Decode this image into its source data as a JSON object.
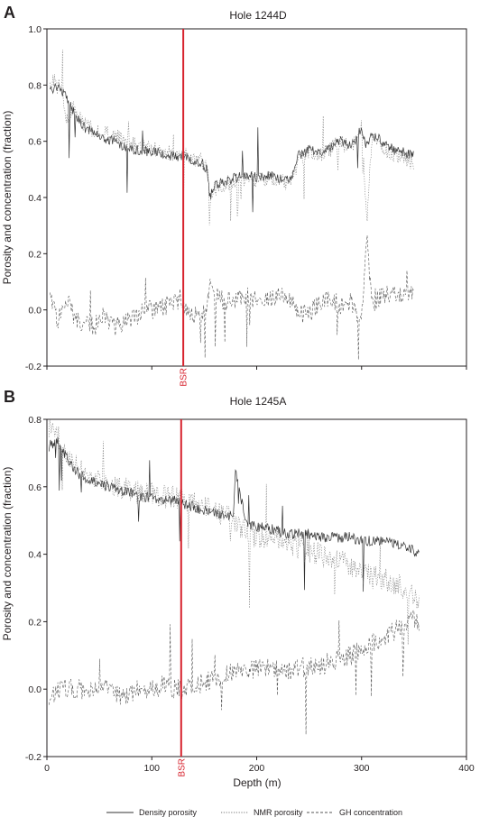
{
  "chart_data": [
    {
      "type": "line",
      "panel_label": "A",
      "title": "Hole 1244D",
      "xlabel": "",
      "ylabel": "Porosity and concentration (fraction)",
      "xlim": [
        0,
        400
      ],
      "ylim": [
        -0.2,
        1.0
      ],
      "x_ticks": [
        0,
        100,
        200,
        300,
        400
      ],
      "y_ticks": [
        "-0.2",
        "0.0",
        "0.2",
        "0.4",
        "0.6",
        "0.8",
        "1.0"
      ],
      "x_tick_labels_shown": false,
      "bsr": {
        "x": 130,
        "label": "BSR",
        "color": "#d7232e"
      },
      "grid": false,
      "series": [
        {
          "name": "Density porosity",
          "style": "solid",
          "color": "#333333",
          "noise": 0.018,
          "x": [
            3,
            10,
            18,
            25,
            35,
            45,
            55,
            65,
            75,
            85,
            95,
            105,
            115,
            125,
            135,
            140,
            148,
            153,
            155,
            160,
            170,
            180,
            190,
            200,
            210,
            220,
            230,
            235,
            240,
            250,
            260,
            270,
            280,
            290,
            300,
            305,
            310,
            320,
            330,
            340,
            350
          ],
          "y": [
            0.78,
            0.8,
            0.76,
            0.71,
            0.65,
            0.63,
            0.61,
            0.6,
            0.58,
            0.57,
            0.565,
            0.56,
            0.55,
            0.545,
            0.54,
            0.53,
            0.52,
            0.5,
            0.4,
            0.44,
            0.46,
            0.47,
            0.48,
            0.47,
            0.48,
            0.47,
            0.46,
            0.48,
            0.55,
            0.57,
            0.56,
            0.58,
            0.6,
            0.58,
            0.65,
            0.58,
            0.62,
            0.6,
            0.57,
            0.56,
            0.55
          ]
        },
        {
          "name": "NMR porosity",
          "style": "dotted",
          "color": "#777777",
          "noise": 0.028,
          "x": [
            3,
            10,
            18,
            25,
            35,
            45,
            55,
            65,
            75,
            85,
            95,
            105,
            115,
            125,
            135,
            140,
            148,
            153,
            155,
            160,
            170,
            180,
            190,
            200,
            210,
            220,
            230,
            235,
            240,
            250,
            260,
            270,
            280,
            290,
            300,
            305,
            310,
            320,
            330,
            340,
            350
          ],
          "y": [
            0.8,
            0.84,
            0.68,
            0.72,
            0.66,
            0.64,
            0.63,
            0.62,
            0.6,
            0.59,
            0.58,
            0.57,
            0.56,
            0.555,
            0.55,
            0.54,
            0.53,
            0.51,
            0.38,
            0.43,
            0.45,
            0.46,
            0.47,
            0.46,
            0.47,
            0.46,
            0.45,
            0.47,
            0.54,
            0.56,
            0.55,
            0.57,
            0.6,
            0.57,
            0.66,
            0.3,
            0.62,
            0.58,
            0.55,
            0.54,
            0.52
          ]
        },
        {
          "name": "GH concentration",
          "style": "dashed",
          "color": "#555555",
          "noise": 0.035,
          "x": [
            3,
            10,
            18,
            25,
            35,
            45,
            55,
            65,
            75,
            85,
            95,
            105,
            115,
            125,
            135,
            140,
            148,
            153,
            155,
            160,
            170,
            180,
            190,
            200,
            210,
            220,
            230,
            235,
            240,
            250,
            260,
            270,
            280,
            290,
            300,
            305,
            310,
            320,
            330,
            340,
            350
          ],
          "y": [
            0.05,
            -0.04,
            0.05,
            -0.02,
            -0.05,
            -0.06,
            -0.02,
            -0.06,
            -0.04,
            -0.02,
            0.0,
            0.0,
            0.02,
            0.03,
            0.0,
            -0.02,
            -0.02,
            0.0,
            0.12,
            0.05,
            0.03,
            0.04,
            0.05,
            0.04,
            0.03,
            0.05,
            0.05,
            0.03,
            -0.02,
            -0.01,
            0.02,
            0.04,
            0.02,
            0.03,
            -0.04,
            0.25,
            0.02,
            0.05,
            0.07,
            0.05,
            0.06
          ]
        }
      ]
    },
    {
      "type": "line",
      "panel_label": "B",
      "title": "Hole 1245A",
      "xlabel": "Depth (m)",
      "ylabel": "Porosity and concentration (fraction)",
      "xlim": [
        0,
        400
      ],
      "ylim": [
        -0.2,
        0.8
      ],
      "x_ticks": [
        "0",
        "100",
        "200",
        "300",
        "400"
      ],
      "y_ticks": [
        "-0.2",
        "0.0",
        "0.2",
        "0.4",
        "0.6",
        "0.8"
      ],
      "x_tick_labels_shown": true,
      "bsr": {
        "x": 128,
        "label": "BSR",
        "color": "#d7232e"
      },
      "grid": false,
      "series": [
        {
          "name": "Density porosity",
          "style": "solid",
          "color": "#333333",
          "noise": 0.016,
          "x": [
            2,
            10,
            20,
            30,
            40,
            50,
            60,
            70,
            80,
            90,
            100,
            110,
            120,
            130,
            140,
            150,
            160,
            170,
            178,
            180,
            190,
            200,
            210,
            220,
            230,
            240,
            250,
            260,
            270,
            280,
            290,
            300,
            310,
            320,
            330,
            340,
            350,
            355
          ],
          "y": [
            0.72,
            0.74,
            0.68,
            0.64,
            0.62,
            0.61,
            0.6,
            0.59,
            0.58,
            0.57,
            0.57,
            0.56,
            0.56,
            0.55,
            0.54,
            0.53,
            0.52,
            0.51,
            0.52,
            0.65,
            0.49,
            0.48,
            0.48,
            0.47,
            0.46,
            0.46,
            0.46,
            0.45,
            0.45,
            0.45,
            0.45,
            0.44,
            0.44,
            0.44,
            0.43,
            0.42,
            0.41,
            0.4
          ]
        },
        {
          "name": "NMR porosity",
          "style": "dotted",
          "color": "#777777",
          "noise": 0.035,
          "x": [
            2,
            10,
            20,
            30,
            40,
            50,
            60,
            70,
            80,
            90,
            100,
            110,
            120,
            130,
            140,
            150,
            160,
            170,
            178,
            180,
            190,
            200,
            210,
            220,
            230,
            240,
            250,
            260,
            270,
            280,
            290,
            300,
            310,
            320,
            330,
            340,
            350,
            355
          ],
          "y": [
            0.78,
            0.75,
            0.7,
            0.66,
            0.64,
            0.62,
            0.61,
            0.6,
            0.59,
            0.58,
            0.58,
            0.57,
            0.57,
            0.56,
            0.55,
            0.54,
            0.53,
            0.52,
            0.5,
            0.5,
            0.46,
            0.45,
            0.45,
            0.44,
            0.43,
            0.42,
            0.41,
            0.4,
            0.38,
            0.38,
            0.37,
            0.35,
            0.33,
            0.33,
            0.31,
            0.3,
            0.28,
            0.26
          ]
        },
        {
          "name": "GH concentration",
          "style": "dashed",
          "color": "#555555",
          "noise": 0.03,
          "x": [
            2,
            10,
            20,
            30,
            40,
            50,
            60,
            70,
            80,
            90,
            100,
            110,
            120,
            130,
            140,
            150,
            160,
            170,
            178,
            180,
            190,
            200,
            210,
            220,
            230,
            240,
            250,
            260,
            270,
            280,
            290,
            300,
            310,
            320,
            330,
            340,
            350,
            355
          ],
          "y": [
            -0.02,
            0.0,
            0.0,
            0.0,
            -0.01,
            0.0,
            0.0,
            -0.02,
            -0.01,
            0.0,
            0.0,
            0.01,
            0.0,
            0.0,
            0.01,
            0.02,
            0.03,
            0.04,
            0.05,
            0.05,
            0.05,
            0.06,
            0.06,
            0.06,
            0.05,
            0.06,
            0.07,
            0.07,
            0.08,
            0.09,
            0.1,
            0.12,
            0.14,
            0.15,
            0.17,
            0.19,
            0.21,
            0.2
          ]
        }
      ]
    }
  ],
  "legend": {
    "placement": "bottom",
    "items": [
      {
        "label": "Density porosity",
        "style": "solid",
        "color": "#333333"
      },
      {
        "label": "NMR porosity",
        "style": "dotted",
        "color": "#777777"
      },
      {
        "label": "GH concentration",
        "style": "dashed",
        "color": "#555555"
      }
    ]
  }
}
